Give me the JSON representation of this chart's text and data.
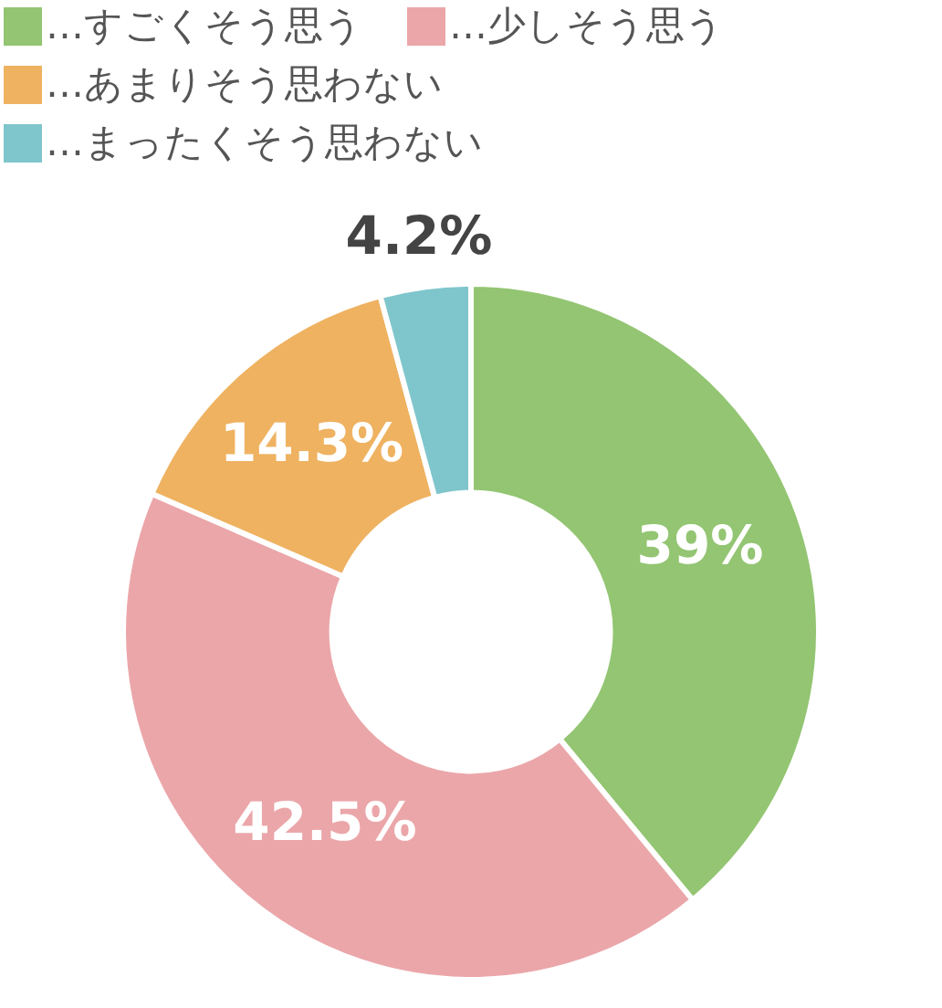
{
  "chart_data": {
    "type": "donut",
    "categories": [
      "…すごくそう思う",
      "…少しそう思う",
      "…あまりそう思わない",
      "…まったくそう思わない"
    ],
    "values": [
      39,
      42.5,
      14.3,
      4.2
    ],
    "colors": [
      "#93c572",
      "#eba6a9",
      "#efb261",
      "#7fc6cc"
    ],
    "value_labels": [
      "39%",
      "42.5%",
      "14.3%",
      "4.2%"
    ],
    "legend": "top left"
  }
}
